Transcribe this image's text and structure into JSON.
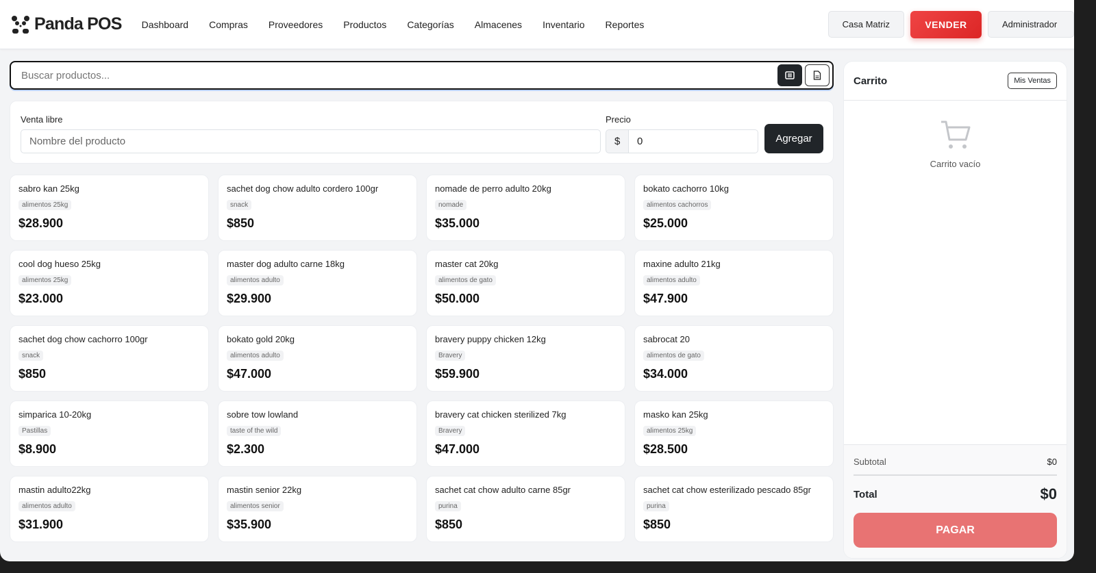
{
  "nav": {
    "brand": "Panda POS",
    "links": [
      "Dashboard",
      "Compras",
      "Proveedores",
      "Productos",
      "Categorías",
      "Almacenes",
      "Inventario",
      "Reportes"
    ],
    "branch": "Casa Matriz",
    "sell": "VENDER",
    "user": "Administrador"
  },
  "search": {
    "placeholder": "Buscar productos..."
  },
  "free_sale": {
    "label": "Venta libre",
    "name_placeholder": "Nombre del producto",
    "price_label": "Precio",
    "currency": "$",
    "price_value": "0",
    "add": "Agregar"
  },
  "products": [
    {
      "name": "sabro kan 25kg",
      "tag": "alimentos 25kg",
      "price": "$28.900"
    },
    {
      "name": "sachet dog chow adulto cordero 100gr",
      "tag": "snack",
      "price": "$850"
    },
    {
      "name": "nomade de perro adulto 20kg",
      "tag": "nomade",
      "price": "$35.000"
    },
    {
      "name": "bokato cachorro 10kg",
      "tag": "alimentos cachorros",
      "price": "$25.000"
    },
    {
      "name": "cool dog hueso 25kg",
      "tag": "alimentos 25kg",
      "price": "$23.000"
    },
    {
      "name": "master dog adulto carne 18kg",
      "tag": "alimentos adulto",
      "price": "$29.900"
    },
    {
      "name": "master cat 20kg",
      "tag": "alimentos de gato",
      "price": "$50.000"
    },
    {
      "name": "maxine adulto 21kg",
      "tag": "alimentos adulto",
      "price": "$47.900"
    },
    {
      "name": "sachet dog chow cachorro 100gr",
      "tag": "snack",
      "price": "$850"
    },
    {
      "name": "bokato gold 20kg",
      "tag": "alimentos adulto",
      "price": "$47.000"
    },
    {
      "name": "bravery puppy chicken 12kg",
      "tag": "Bravery",
      "price": "$59.900"
    },
    {
      "name": "sabrocat 20",
      "tag": "alimentos de gato",
      "price": "$34.000"
    },
    {
      "name": "simparica 10-20kg",
      "tag": "Pastillas",
      "price": "$8.900"
    },
    {
      "name": "sobre tow lowland",
      "tag": "taste of the wild",
      "price": "$2.300"
    },
    {
      "name": "bravery cat chicken sterilized 7kg",
      "tag": "Bravery",
      "price": "$47.000"
    },
    {
      "name": "masko kan 25kg",
      "tag": "alimentos 25kg",
      "price": "$28.500"
    },
    {
      "name": "mastin adulto22kg",
      "tag": "alimentos adulto",
      "price": "$31.900"
    },
    {
      "name": "mastin senior 22kg",
      "tag": "alimentos senior",
      "price": "$35.900"
    },
    {
      "name": "sachet cat chow adulto carne 85gr",
      "tag": "purina",
      "price": "$850"
    },
    {
      "name": "sachet cat chow esterilizado pescado 85gr",
      "tag": "purina",
      "price": "$850"
    }
  ],
  "cart": {
    "title": "Carrito",
    "my_sales": "Mis Ventas",
    "empty": "Carrito vacío",
    "subtotal_label": "Subtotal",
    "subtotal": "$0",
    "total_label": "Total",
    "total": "$0",
    "pay": "PAGAR"
  },
  "colors": {
    "accent": "#dc2626",
    "pay": "#e87373",
    "dark": "#212529"
  }
}
